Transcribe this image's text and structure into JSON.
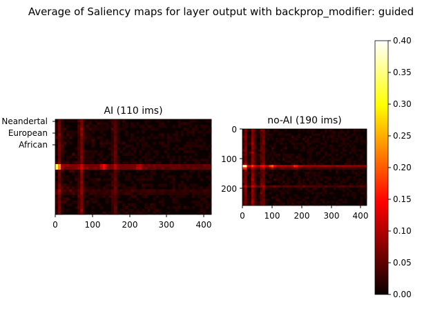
{
  "figure": {
    "title": "Average of Saliency maps for layer output with backprop_modifier: guided"
  },
  "chart_data": [
    {
      "type": "heatmap",
      "title": "AI (110 ims)",
      "colormap": "hot",
      "xlim": [
        0,
        420
      ],
      "ylim_descending": [
        0,
        260
      ],
      "x_ticks": [
        "0",
        "100",
        "200",
        "300",
        "400"
      ],
      "y_ticks": [
        "Neandertal",
        "European",
        "African"
      ],
      "bright_rows": [
        {
          "row": 130,
          "strength": 0.11
        },
        {
          "row": 198,
          "strength": 0.03
        }
      ],
      "bright_cols": [
        {
          "col": 12,
          "strength": 0.05
        },
        {
          "col": 70,
          "strength": 0.06
        },
        {
          "col": 160,
          "strength": 0.04
        }
      ],
      "hotspots": [
        {
          "x": 4,
          "y": 130,
          "value": 0.38
        },
        {
          "x": 130,
          "y": 130,
          "value": 0.12
        },
        {
          "x": 225,
          "y": 130,
          "value": 0.08
        }
      ]
    },
    {
      "type": "heatmap",
      "title": "no-AI (190 ims)",
      "colormap": "hot",
      "xlim": [
        0,
        420
      ],
      "ylim_descending": [
        0,
        260
      ],
      "x_ticks": [
        "0",
        "100",
        "200",
        "300",
        "400"
      ],
      "y_ticks": [
        "0",
        "100",
        "200"
      ],
      "bright_rows": [
        {
          "row": 128,
          "strength": 0.12
        },
        {
          "row": 195,
          "strength": 0.04
        }
      ],
      "bright_cols": [
        {
          "col": 10,
          "strength": 0.06
        },
        {
          "col": 36,
          "strength": 0.07
        },
        {
          "col": 68,
          "strength": 0.06
        }
      ],
      "hotspots": [
        {
          "x": 6,
          "y": 128,
          "value": 0.3
        },
        {
          "x": 100,
          "y": 128,
          "value": 0.14
        },
        {
          "x": 180,
          "y": 128,
          "value": 0.1
        }
      ]
    }
  ],
  "colorbar": {
    "vmin": 0.0,
    "vmax": 0.4,
    "ticks": [
      "0.00",
      "0.05",
      "0.10",
      "0.15",
      "0.20",
      "0.25",
      "0.30",
      "0.35",
      "0.40"
    ]
  }
}
